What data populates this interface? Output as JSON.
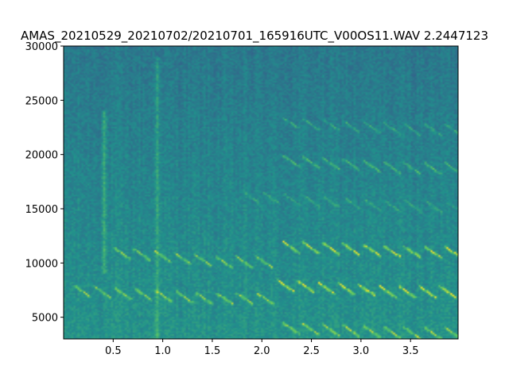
{
  "chart_data": {
    "type": "heatmap",
    "title": "AMAS_20210529_20210702/20210701_165916UTC_V00OS11.WAV 2.2447123",
    "xlabel": "",
    "ylabel": "",
    "xlim": [
      0.0,
      3.98
    ],
    "ylim": [
      3000,
      30000
    ],
    "x_ticks": [
      0.5,
      1.0,
      1.5,
      2.0,
      2.5,
      3.0,
      3.5
    ],
    "x_tick_labels": [
      "0.5",
      "1.0",
      "1.5",
      "2.0",
      "2.5",
      "3.0",
      "3.5"
    ],
    "y_ticks": [
      5000,
      10000,
      15000,
      20000,
      25000,
      30000
    ],
    "y_tick_labels": [
      "5000",
      "10000",
      "15000",
      "20000",
      "25000",
      "30000"
    ],
    "colormap": "viridis",
    "background_color": "#26878d",
    "highlight_color": "#59c864",
    "grid": false,
    "vertical_clicks": [
      {
        "t": 0.4,
        "f_low": 9000,
        "f_high": 24000
      },
      {
        "t": 0.93,
        "f_low": 3000,
        "f_high": 29000
      }
    ],
    "pulse_trains": [
      {
        "f_start": 11000,
        "f_end": 10200,
        "t_start": 0.5,
        "t_end": 2.0,
        "intensity": 0.55
      },
      {
        "f_start": 11600,
        "f_end": 11100,
        "t_start": 2.2,
        "t_end": 3.98,
        "intensity": 0.75
      },
      {
        "f_start": 7500,
        "f_end": 6800,
        "t_start": 0.1,
        "t_end": 2.1,
        "intensity": 0.55
      },
      {
        "f_start": 8000,
        "f_end": 7400,
        "t_start": 2.15,
        "t_end": 3.98,
        "intensity": 0.8
      },
      {
        "f_start": 4100,
        "f_end": 3600,
        "t_start": 2.2,
        "t_end": 3.98,
        "intensity": 0.6
      },
      {
        "f_start": 19500,
        "f_end": 18800,
        "t_start": 2.2,
        "t_end": 3.98,
        "intensity": 0.4
      },
      {
        "f_start": 23000,
        "f_end": 22400,
        "t_start": 2.2,
        "t_end": 3.98,
        "intensity": 0.3
      },
      {
        "f_start": 16200,
        "f_end": 15300,
        "t_start": 1.8,
        "t_end": 3.98,
        "intensity": 0.25
      }
    ]
  }
}
